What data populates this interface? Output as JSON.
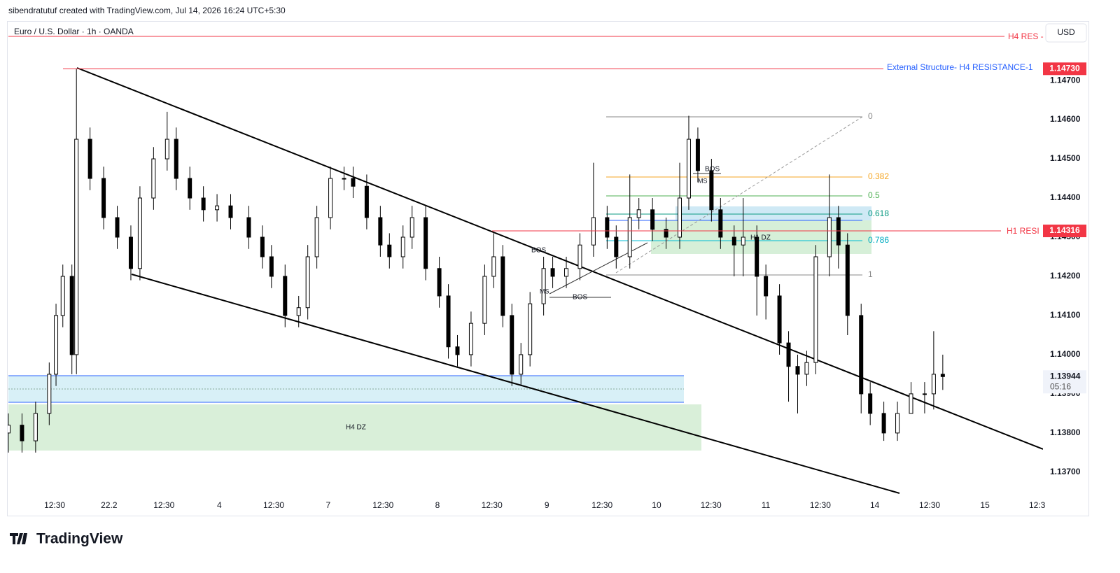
{
  "header": {
    "credit": "sibendratutuf created with TradingView.com, Jul 14, 2026 16:24 UTC+5:30",
    "currency": "USD",
    "brand": "TradingView"
  },
  "chart_data": {
    "type": "candlestick",
    "title": "Euro / U.S. Dollar · 1h · OANDA",
    "up_color": "#ffffff",
    "down_color": "#000000",
    "wick_color": "#000000",
    "x": [
      0,
      3,
      6,
      9,
      10.5,
      12,
      14,
      15,
      18,
      21,
      24,
      27,
      29,
      32,
      35,
      37,
      40,
      43,
      46,
      49,
      53,
      56,
      58,
      61,
      64,
      66,
      68,
      71,
      74,
      76,
      79,
      82,
      84,
      87,
      89,
      92,
      95,
      97,
      99,
      102,
      105,
      107,
      109,
      111,
      113,
      115,
      118,
      120,
      123,
      126,
      129,
      132,
      134,
      137,
      139,
      142,
      145,
      148,
      150,
      152,
      155,
      157,
      160,
      162,
      165,
      167,
      170,
      172,
      174,
      176,
      178,
      181,
      183,
      185,
      188,
      190,
      193,
      196,
      199,
      202,
      204,
      206
    ],
    "open": [
      1.138,
      1.1382,
      1.1378,
      1.1385,
      1.1395,
      1.141,
      1.142,
      1.14,
      1.1455,
      1.1445,
      1.1435,
      1.143,
      1.1422,
      1.144,
      1.145,
      1.1455,
      1.1445,
      1.144,
      1.1437,
      1.1438,
      1.1435,
      1.143,
      1.1425,
      1.142,
      1.141,
      1.1412,
      1.1425,
      1.1435,
      1.1445,
      1.1445,
      1.1443,
      1.1435,
      1.1428,
      1.1425,
      1.143,
      1.1435,
      1.1422,
      1.1415,
      1.1402,
      1.14,
      1.1408,
      1.142,
      1.1425,
      1.141,
      1.1395,
      1.14,
      1.1413,
      1.1422,
      1.142,
      1.1422,
      1.1428,
      1.1435,
      1.143,
      1.1425,
      1.1435,
      1.1437,
      1.1432,
      1.143,
      1.144,
      1.1455,
      1.1447,
      1.1437,
      1.143,
      1.1428,
      1.143,
      1.142,
      1.1415,
      1.1403,
      1.1397,
      1.1395,
      1.1398,
      1.1425,
      1.1435,
      1.1428,
      1.141,
      1.139,
      1.1385,
      1.138,
      1.1385,
      1.139,
      1.139,
      1.1395
    ],
    "high": [
      1.1385,
      1.1385,
      1.1388,
      1.1398,
      1.1413,
      1.1423,
      1.1423,
      1.1473,
      1.1458,
      1.1448,
      1.1438,
      1.1433,
      1.1443,
      1.1453,
      1.1462,
      1.1458,
      1.1448,
      1.1443,
      1.1441,
      1.1441,
      1.1438,
      1.1433,
      1.1428,
      1.1423,
      1.1415,
      1.1428,
      1.1438,
      1.1448,
      1.1448,
      1.1448,
      1.1446,
      1.1438,
      1.1431,
      1.1433,
      1.1438,
      1.1438,
      1.1425,
      1.1418,
      1.1405,
      1.1411,
      1.1423,
      1.1431,
      1.1428,
      1.1413,
      1.1403,
      1.1416,
      1.1425,
      1.1425,
      1.1425,
      1.1431,
      1.1449,
      1.1438,
      1.1433,
      1.1446,
      1.144,
      1.144,
      1.1435,
      1.1449,
      1.1461,
      1.1458,
      1.145,
      1.144,
      1.1433,
      1.144,
      1.1433,
      1.1423,
      1.1418,
      1.1406,
      1.14,
      1.1401,
      1.1428,
      1.1446,
      1.1438,
      1.1431,
      1.1413,
      1.1393,
      1.1388,
      1.1388,
      1.1393,
      1.1393,
      1.1406,
      1.14
    ],
    "low": [
      1.1375,
      1.1375,
      1.1375,
      1.1382,
      1.1392,
      1.1407,
      1.1395,
      1.1395,
      1.1442,
      1.1432,
      1.1427,
      1.1419,
      1.1419,
      1.1437,
      1.1447,
      1.1442,
      1.1437,
      1.1434,
      1.1434,
      1.1432,
      1.1427,
      1.1422,
      1.1417,
      1.1407,
      1.1407,
      1.1409,
      1.1422,
      1.1432,
      1.1442,
      1.144,
      1.1432,
      1.1425,
      1.1422,
      1.1422,
      1.1427,
      1.1419,
      1.1412,
      1.1399,
      1.1397,
      1.1397,
      1.1405,
      1.1417,
      1.1407,
      1.1392,
      1.1392,
      1.1397,
      1.141,
      1.1417,
      1.1417,
      1.1419,
      1.1425,
      1.1427,
      1.1422,
      1.1422,
      1.1432,
      1.1429,
      1.1427,
      1.1427,
      1.1437,
      1.1444,
      1.1434,
      1.1427,
      1.142,
      1.142,
      1.141,
      1.1409,
      1.14,
      1.1388,
      1.1385,
      1.1392,
      1.1395,
      1.142,
      1.1422,
      1.1405,
      1.1385,
      1.1382,
      1.1378,
      1.1378,
      1.1385,
      1.1385,
      1.1386,
      1.1391
    ],
    "close": [
      1.1382,
      1.1378,
      1.1385,
      1.1395,
      1.141,
      1.142,
      1.14,
      1.1455,
      1.1445,
      1.1435,
      1.143,
      1.1422,
      1.144,
      1.145,
      1.1455,
      1.1445,
      1.144,
      1.1437,
      1.1438,
      1.1435,
      1.143,
      1.1425,
      1.142,
      1.141,
      1.1412,
      1.1425,
      1.1435,
      1.1445,
      1.1445,
      1.1443,
      1.1435,
      1.1428,
      1.1425,
      1.143,
      1.1435,
      1.1422,
      1.1415,
      1.1402,
      1.14,
      1.1408,
      1.142,
      1.1425,
      1.141,
      1.1395,
      1.14,
      1.1413,
      1.1422,
      1.142,
      1.1422,
      1.1428,
      1.1435,
      1.143,
      1.1425,
      1.1435,
      1.1437,
      1.1432,
      1.143,
      1.144,
      1.1455,
      1.1447,
      1.1437,
      1.143,
      1.1428,
      1.143,
      1.142,
      1.1415,
      1.1403,
      1.1397,
      1.1395,
      1.1398,
      1.1425,
      1.1435,
      1.1428,
      1.141,
      1.139,
      1.1385,
      1.138,
      1.1385,
      1.139,
      1.139,
      1.1395,
      1.13944
    ],
    "xlim": [
      0,
      228.4
    ],
    "xticks": [
      {
        "value": 10.2,
        "label": "12:30"
      },
      22.2,
      {
        "value": 34.3,
        "label": "12:30"
      },
      {
        "value": 46.5,
        "label": "4"
      },
      {
        "value": 58.5,
        "label": "12:30"
      },
      {
        "value": 70.5,
        "label": "7"
      },
      {
        "value": 82.6,
        "label": "12:30"
      },
      {
        "value": 94.6,
        "label": "8"
      },
      {
        "value": 106.6,
        "label": "12:30"
      },
      {
        "value": 118.7,
        "label": "9"
      },
      {
        "value": 130.9,
        "label": "12:30"
      },
      {
        "value": 142.9,
        "label": "10"
      },
      {
        "value": 154.9,
        "label": "12:30"
      },
      {
        "value": 167,
        "label": "11"
      },
      {
        "value": 179,
        "label": "12:30"
      },
      {
        "value": 191,
        "label": "14"
      },
      {
        "value": 203.1,
        "label": "12:30"
      },
      {
        "value": 215.3,
        "label": "15"
      },
      {
        "value": 226.8,
        "label": "12:3"
      }
    ],
    "ylim": [
      1.13589,
      1.14852
    ],
    "yticks": [
      {
        "value": 1.147,
        "label": "1.14700"
      },
      {
        "value": 1.146,
        "label": "1.14600"
      },
      {
        "value": 1.145,
        "label": "1.14500"
      },
      {
        "value": 1.144,
        "label": "1.14400"
      },
      {
        "value": 1.143,
        "label": "1.14300"
      },
      {
        "value": 1.142,
        "label": "1.14200"
      },
      {
        "value": 1.141,
        "label": "1.14100"
      },
      {
        "value": 1.14,
        "label": "1.14000"
      },
      {
        "value": 1.139,
        "label": "1.13900"
      },
      {
        "value": 1.138,
        "label": "1.13800"
      },
      {
        "value": 1.137,
        "label": "1.13700"
      }
    ],
    "price_tags": [
      {
        "value": 1.1473,
        "label": "1.14730",
        "name": "External Structure- H4 RESISTANCE-1"
      },
      {
        "value": 1.14316,
        "label": "1.14316",
        "name": "H1 RESI"
      }
    ],
    "h4_res_label": "H4 RES -",
    "last_price": {
      "value": 1.13944,
      "label": "1.13944",
      "countdown": "05:16"
    },
    "fib_levels": [
      "0",
      "0.382",
      "0.5",
      "0.618",
      "0.786",
      "1"
    ],
    "annotations": [
      "BOS",
      "MS",
      "BOS",
      "MS",
      "BOS",
      "H1 DZ",
      "H4 DZ"
    ]
  }
}
